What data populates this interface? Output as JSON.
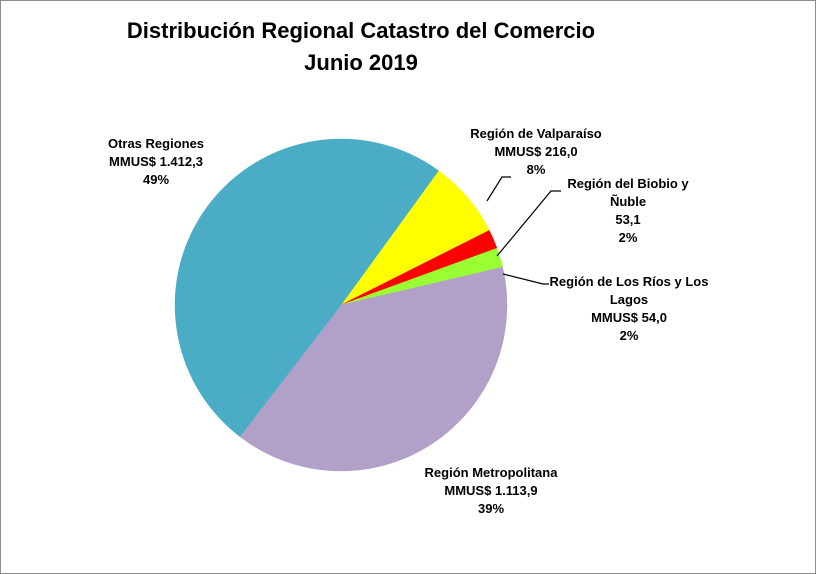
{
  "chart_data": {
    "type": "pie",
    "title": "Distribución Regional Catastro del Comercio",
    "subtitle": "Junio 2019",
    "unit": "MMUS$",
    "slices": [
      {
        "label": "Región de Valparaíso",
        "value": 216.0,
        "value_text": "MMUS$ 216,0",
        "percent_text": "8%",
        "color": "#FFFF00"
      },
      {
        "label": "Región del Biobio y Ñuble",
        "value": 53.1,
        "value_text": "53,1",
        "percent_text": "2%",
        "color": "#FF0000"
      },
      {
        "label": "Región de Los Ríos y Los Lagos",
        "value": 54.0,
        "value_text": "MMUS$ 54,0",
        "percent_text": "2%",
        "color": "#99FF33"
      },
      {
        "label": "Región Metropolitana",
        "value": 1113.9,
        "value_text": "MMUS$ 1.113,9",
        "percent_text": "39%",
        "color": "#B1A0C7"
      },
      {
        "label": "Otras Regiones",
        "value": 1412.3,
        "value_text": "MMUS$ 1.412,3",
        "percent_text": "49%",
        "color": "#4BACC6"
      }
    ],
    "labels": {
      "valparaiso": {
        "line1": "Región de Valparaíso",
        "line2": "MMUS$ 216,0",
        "line3": "8%"
      },
      "biobio": {
        "line1": "Región del Biobio y",
        "line2": "Ñuble",
        "line3": "53,1",
        "line4": "2%"
      },
      "losrios": {
        "line1": "Región de Los Ríos y Los",
        "line2": "Lagos",
        "line3": "MMUS$ 54,0",
        "line4": "2%"
      },
      "metropolitana": {
        "line1": "Región Metropolitana",
        "line2": "MMUS$ 1.113,9",
        "line3": "39%"
      },
      "otras": {
        "line1": "Otras Regiones",
        "line2": "MMUS$ 1.412,3",
        "line3": "49%"
      }
    }
  }
}
